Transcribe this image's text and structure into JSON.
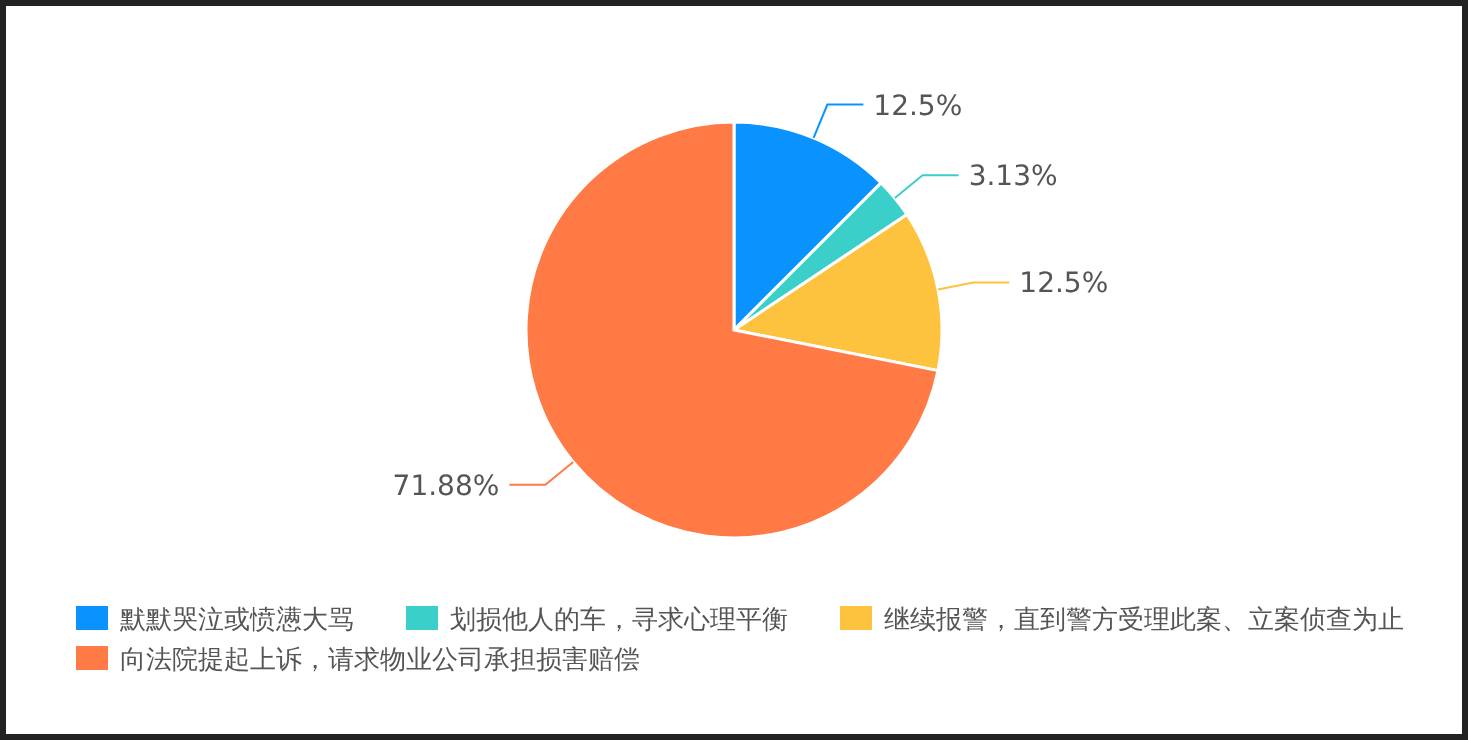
{
  "chart_data": {
    "type": "pie",
    "categories": [
      "默默哭泣或愤懑大骂",
      "划损他人的车，寻求心理平衡",
      "继续报警，直到警方受理此案、立案侦查为止",
      "向法院提起上诉，请求物业公司承担损害赔偿"
    ],
    "values": [
      12.5,
      3.13,
      12.5,
      71.88
    ],
    "value_labels": [
      "12.5%",
      "3.13%",
      "12.5%",
      "71.88%"
    ],
    "colors": [
      "#0a93ff",
      "#3acfc8",
      "#fec33e",
      "#ff7a45"
    ],
    "legend": "bottom left"
  }
}
